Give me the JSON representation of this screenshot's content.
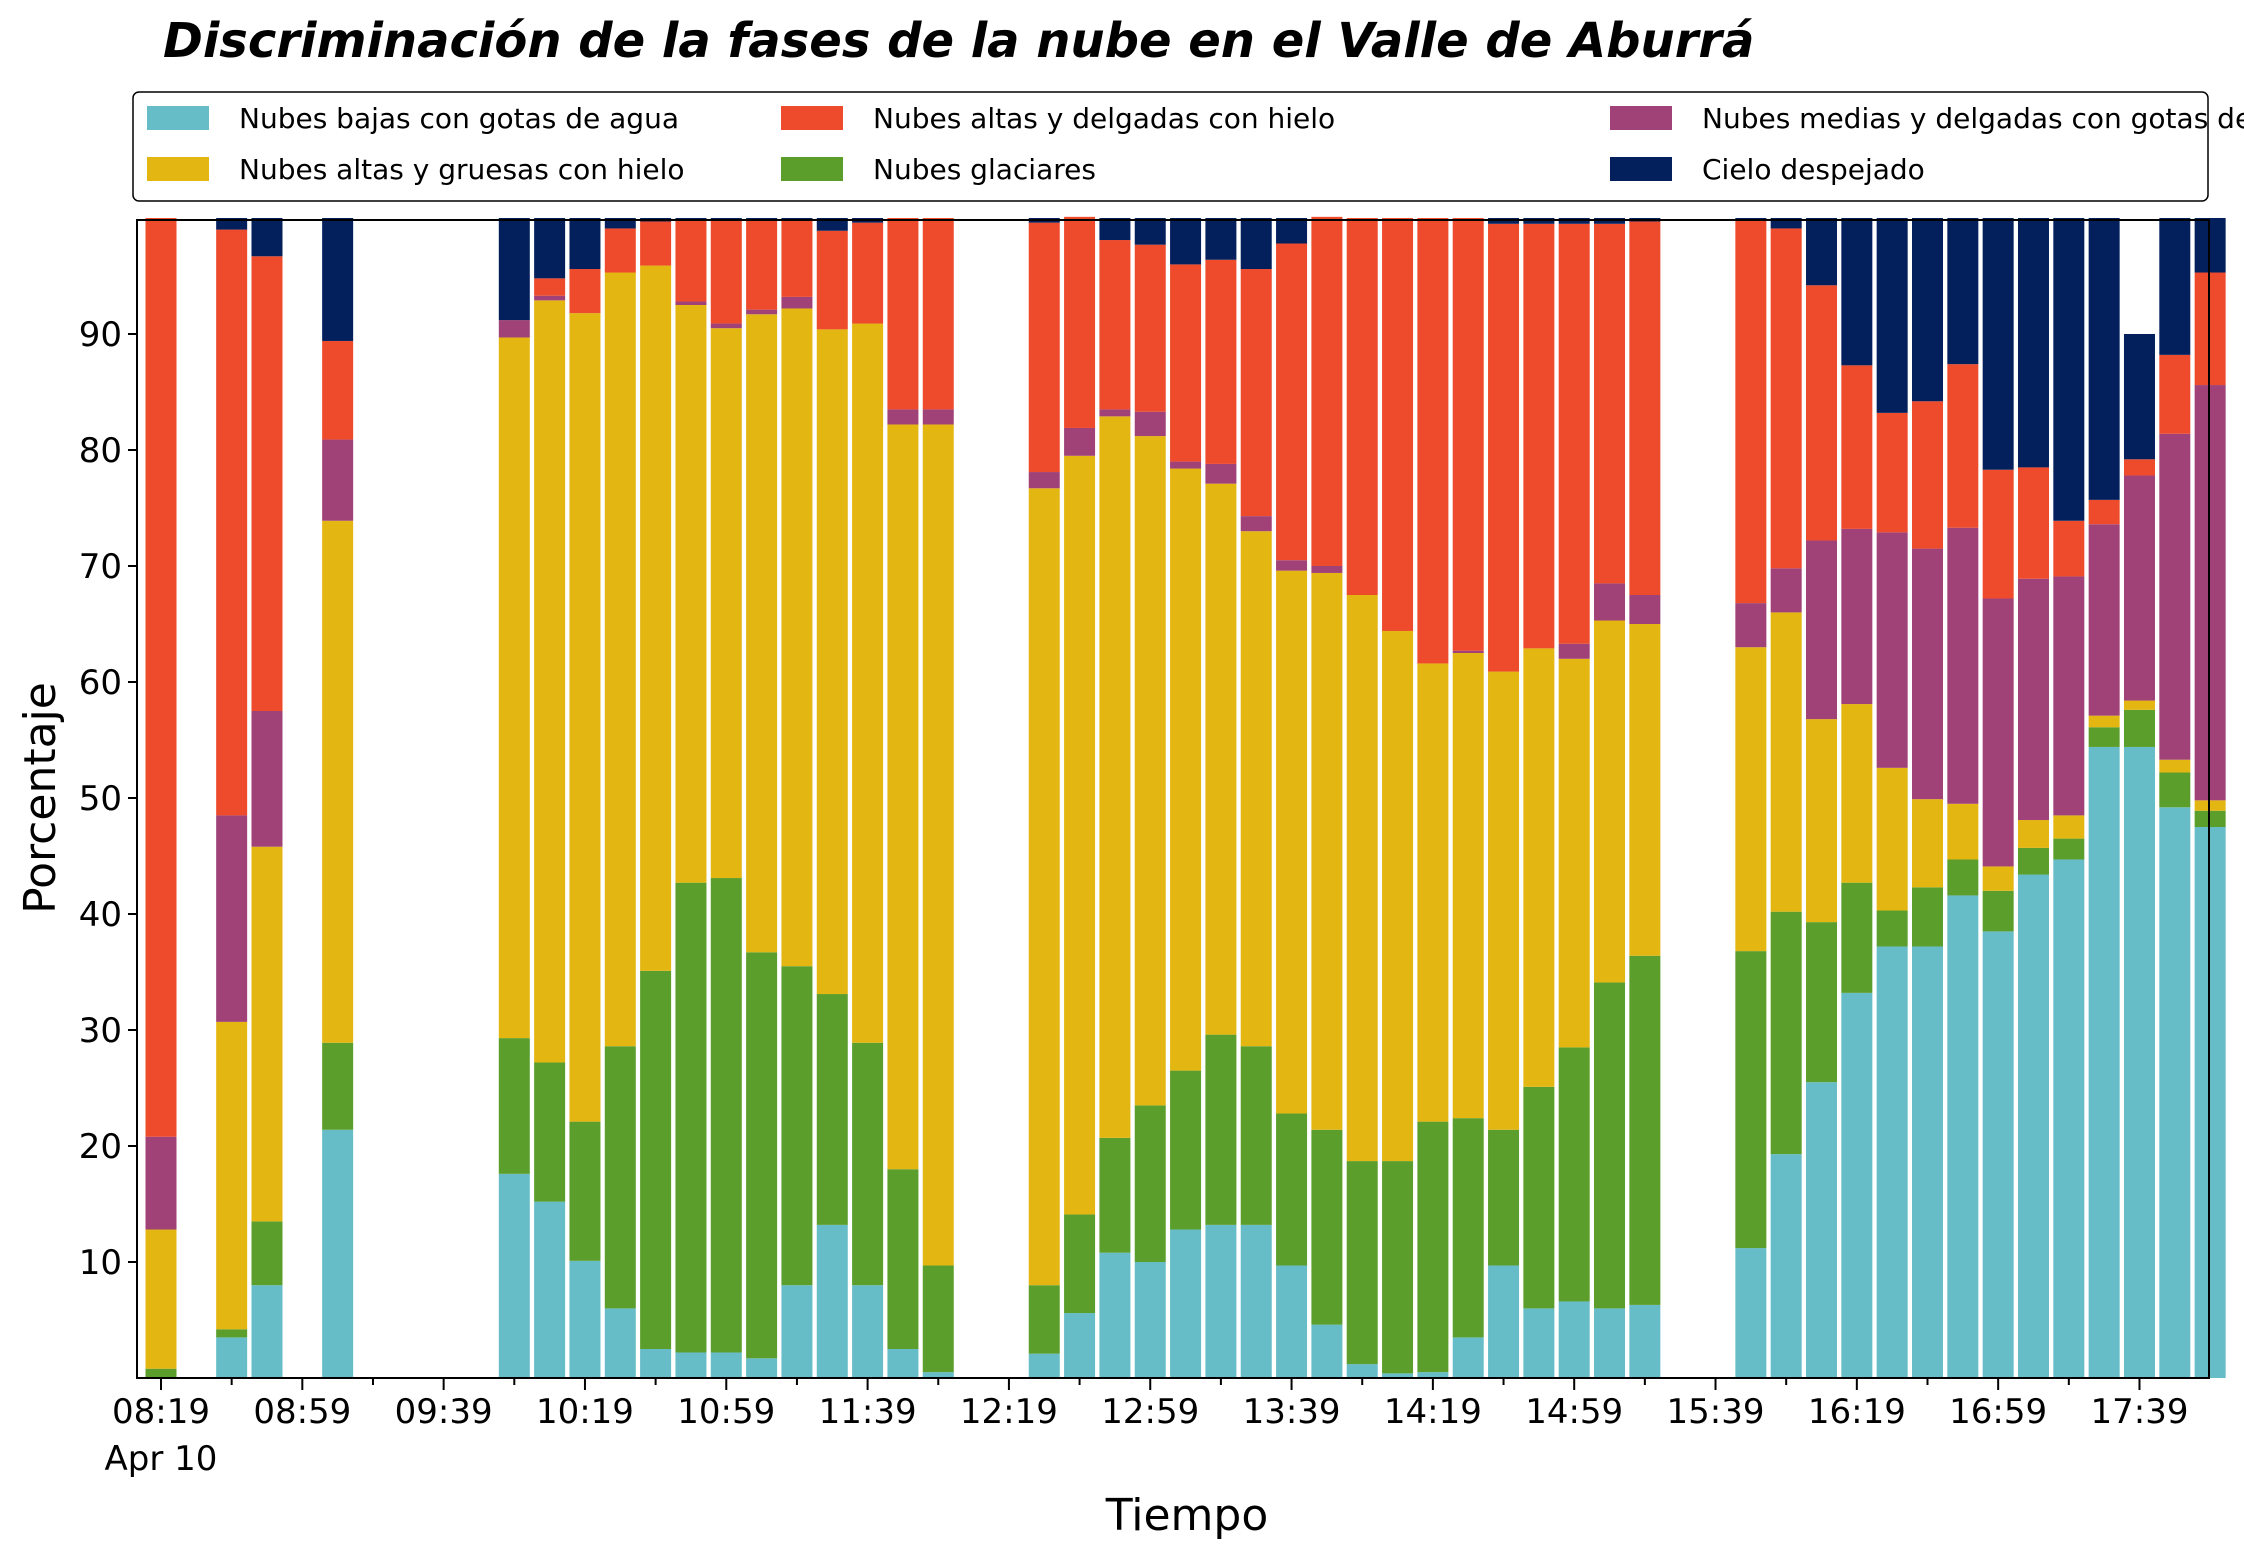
{
  "chart_data": {
    "type": "bar",
    "stacked": true,
    "title": "Discriminación de la fases de la nube en el Valle de Aburrá",
    "xlabel": "Tiempo",
    "ylabel": "Porcentaje",
    "ylim": [
      0,
      100
    ],
    "yticks": [
      10,
      20,
      30,
      40,
      50,
      60,
      70,
      80,
      90
    ],
    "xticks": [
      "08:19",
      "08:59",
      "09:39",
      "10:19",
      "10:59",
      "11:39",
      "12:19",
      "12:59",
      "13:39",
      "14:19",
      "14:59",
      "15:39",
      "16:19",
      "16:59",
      "17:39"
    ],
    "xtick_date": "Apr 10",
    "legend": "top, 3 columns",
    "grid": false,
    "series": [
      {
        "name": "Nubes bajas con gotas de agua",
        "color": "#66bdc8"
      },
      {
        "name": "Nubes glaciares",
        "color": "#5c9e2b"
      },
      {
        "name": "Nubes altas y gruesas con hielo",
        "color": "#e3b612"
      },
      {
        "name": "Nubes medias y delgadas con gotas de agua",
        "color": "#a04277"
      },
      {
        "name": "Nubes altas y delgadas con hielo",
        "color": "#ee4a2c"
      },
      {
        "name": "Cielo despejado",
        "color": "#03205c"
      }
    ],
    "series_order_legend": [
      0,
      2,
      4,
      1,
      3,
      5
    ],
    "x_minutes_start": "08:19",
    "bar_interval_minutes": 10,
    "bars": [
      {
        "slot": 0,
        "values": [
          0,
          0.8,
          12,
          8,
          79.2,
          0
        ]
      },
      {
        "slot": 2,
        "values": [
          3.5,
          0.7,
          26.5,
          17.8,
          50.5,
          1
        ]
      },
      {
        "slot": 3,
        "values": [
          8,
          5.5,
          32.3,
          11.7,
          39.2,
          3.3
        ]
      },
      {
        "slot": 5,
        "values": [
          21.4,
          7.5,
          45,
          7,
          8.5,
          10.6
        ]
      },
      {
        "slot": 10,
        "values": [
          17.6,
          11.7,
          60.4,
          1.5,
          0,
          8.8
        ]
      },
      {
        "slot": 11,
        "values": [
          15.2,
          12,
          65.7,
          0.4,
          1.5,
          5.2
        ]
      },
      {
        "slot": 12,
        "values": [
          10.1,
          12,
          69.7,
          0,
          3.8,
          4.4
        ]
      },
      {
        "slot": 13,
        "values": [
          6,
          22.6,
          66.7,
          0,
          3.8,
          0.9
        ]
      },
      {
        "slot": 14,
        "values": [
          2.5,
          32.6,
          60.8,
          0,
          3.8,
          0.3
        ]
      },
      {
        "slot": 15,
        "values": [
          2.2,
          40.5,
          49.8,
          0.3,
          7,
          0.2
        ]
      },
      {
        "slot": 16,
        "values": [
          2.2,
          40.9,
          47.4,
          0.4,
          8.9,
          0.2
        ]
      },
      {
        "slot": 17,
        "values": [
          1.7,
          35,
          55,
          0.4,
          7.8,
          0.1
        ]
      },
      {
        "slot": 18,
        "values": [
          8,
          27.5,
          56.7,
          1,
          6.6,
          0.2
        ]
      },
      {
        "slot": 19,
        "values": [
          13.2,
          19.9,
          57.3,
          0,
          8.5,
          1.1
        ]
      },
      {
        "slot": 20,
        "values": [
          8,
          20.9,
          62,
          0,
          8.7,
          0.4
        ]
      },
      {
        "slot": 21,
        "values": [
          2.5,
          15.5,
          64.2,
          1.3,
          16.5,
          0
        ]
      },
      {
        "slot": 22,
        "values": [
          0.5,
          9.2,
          72.5,
          1.3,
          16.5,
          0
        ]
      },
      {
        "slot": 25,
        "values": [
          2.1,
          5.9,
          68.7,
          1.4,
          21.5,
          0.4
        ]
      },
      {
        "slot": 26,
        "values": [
          5.6,
          8.5,
          65.4,
          2.4,
          18.2,
          0
        ]
      },
      {
        "slot": 27,
        "values": [
          10.8,
          9.9,
          62.2,
          0.6,
          14.6,
          1.9
        ]
      },
      {
        "slot": 28,
        "values": [
          10,
          13.5,
          57.7,
          2.1,
          14.4,
          2.3
        ]
      },
      {
        "slot": 29,
        "values": [
          12.8,
          13.7,
          51.9,
          0.6,
          17,
          4
        ]
      },
      {
        "slot": 30,
        "values": [
          13.2,
          16.4,
          47.5,
          1.7,
          17.6,
          3.6
        ]
      },
      {
        "slot": 31,
        "values": [
          13.2,
          15.4,
          44.4,
          1.3,
          21.3,
          4.4
        ]
      },
      {
        "slot": 32,
        "values": [
          9.7,
          13.1,
          46.8,
          0.9,
          27.3,
          2.2
        ]
      },
      {
        "slot": 33,
        "values": [
          4.6,
          16.8,
          48,
          0.6,
          30.1,
          0
        ]
      },
      {
        "slot": 34,
        "values": [
          1.2,
          17.5,
          48.8,
          0,
          32.5,
          0
        ]
      },
      {
        "slot": 35,
        "values": [
          0.4,
          18.3,
          45.7,
          0,
          35.6,
          0
        ]
      },
      {
        "slot": 36,
        "values": [
          0.5,
          21.6,
          39.5,
          0,
          38.4,
          0
        ]
      },
      {
        "slot": 37,
        "values": [
          3.5,
          18.9,
          40.1,
          0.2,
          37.3,
          0
        ]
      },
      {
        "slot": 38,
        "values": [
          9.7,
          11.7,
          39.5,
          0,
          38.6,
          0.5
        ]
      },
      {
        "slot": 39,
        "values": [
          6,
          19.1,
          37.8,
          0,
          36.6,
          0.5
        ]
      },
      {
        "slot": 40,
        "values": [
          6.6,
          21.9,
          33.5,
          1.3,
          36.2,
          0.5
        ]
      },
      {
        "slot": 41,
        "values": [
          6,
          28.1,
          31.2,
          3.2,
          31,
          0.5
        ]
      },
      {
        "slot": 42,
        "values": [
          6.3,
          30.1,
          28.6,
          2.5,
          32.2,
          0.3
        ]
      },
      {
        "slot": 45,
        "values": [
          11.2,
          25.6,
          26.2,
          3.8,
          33,
          0.2
        ]
      },
      {
        "slot": 46,
        "values": [
          19.3,
          20.9,
          25.8,
          3.8,
          29.3,
          0.9
        ]
      },
      {
        "slot": 47,
        "values": [
          25.5,
          13.8,
          17.5,
          15.4,
          22,
          5.8
        ]
      },
      {
        "slot": 48,
        "values": [
          33.2,
          9.5,
          15.4,
          15.1,
          14.1,
          12.7
        ]
      },
      {
        "slot": 49,
        "values": [
          37.2,
          3.1,
          12.3,
          20.3,
          10.3,
          16.8
        ]
      },
      {
        "slot": 50,
        "values": [
          37.2,
          5.1,
          7.6,
          21.6,
          12.7,
          15.8
        ]
      },
      {
        "slot": 51,
        "values": [
          41.6,
          3.1,
          4.8,
          23.8,
          14.1,
          12.6
        ]
      },
      {
        "slot": 52,
        "values": [
          38.5,
          3.5,
          2.1,
          23.1,
          11.1,
          21.7
        ]
      },
      {
        "slot": 53,
        "values": [
          43.4,
          2.3,
          2.4,
          20.8,
          9.6,
          21.5
        ]
      },
      {
        "slot": 54,
        "values": [
          44.7,
          1.8,
          2,
          20.6,
          4.8,
          26.1
        ]
      },
      {
        "slot": 55,
        "values": [
          54.4,
          1.7,
          1,
          16.5,
          2.1,
          24.3
        ]
      },
      {
        "slot": 56,
        "values": [
          54.4,
          3.2,
          0.8,
          19.4,
          1.4,
          10.8
        ]
      },
      {
        "slot": 57,
        "values": [
          49.2,
          3,
          1.1,
          28.1,
          6.8,
          11.8
        ]
      },
      {
        "slot": 58,
        "values": [
          47.5,
          1.4,
          0.9,
          35.8,
          9.7,
          4.7
        ]
      }
    ]
  }
}
